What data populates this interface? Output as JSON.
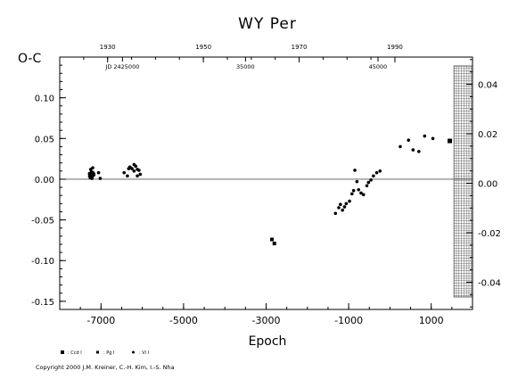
{
  "chart_data": {
    "type": "scatter",
    "title": "WY Per",
    "xlabel": "Epoch",
    "ylabel": "O-C",
    "xlim": [
      -8000,
      2000
    ],
    "ylim": [
      -0.16,
      0.15
    ],
    "y_ticks": [
      "0.10",
      "0.05",
      "0.00",
      "-0.05",
      "-0.10",
      "-0.15"
    ],
    "y_tick_values": [
      0.1,
      0.05,
      0.0,
      -0.05,
      -0.1,
      -0.15
    ],
    "x_ticks": [
      "-7000",
      "-5000",
      "-3000",
      "-1000",
      "1000"
    ],
    "x_tick_values": [
      -7000,
      -5000,
      -3000,
      -1000,
      1000
    ],
    "top_year_ticks": [
      "1930",
      "1950",
      "1970",
      "1990"
    ],
    "top_year_epochs": [
      -6840,
      -4520,
      -2200,
      120
    ],
    "jd_labels": [
      "JD 2425000",
      "35000",
      "45000"
    ],
    "jd_epochs": [
      -6480,
      -3500,
      -290
    ],
    "right_ticks": [
      "0.04",
      "0.02",
      "0.00",
      "-0.02",
      "-0.04"
    ],
    "right_tick_values": [
      0.04,
      0.02,
      0.0,
      -0.02,
      -0.04
    ],
    "right_ylim": [
      -0.051,
      0.051
    ],
    "hatched_region_start": 1550,
    "grid": false,
    "zero_line": true,
    "legend": [
      "Ccd I",
      "Pg I",
      "Vi I"
    ],
    "copyright": "Copyright 2000 J.M. Kreiner, C.-H. Kim, I.-S. Nha",
    "series": [
      {
        "name": "Ccd I",
        "marker": "square",
        "x": [
          1450
        ],
        "y": [
          0.047
        ]
      },
      {
        "name": "Pg I",
        "marker": "square",
        "x": [
          -7270,
          -7220,
          -7180,
          -7250,
          -7210,
          -2860,
          -2800
        ],
        "y": [
          0.004,
          0.003,
          0.006,
          0.002,
          0.008,
          -0.074,
          -0.079
        ]
      },
      {
        "name": "Vi I",
        "marker": "dot",
        "x": [
          -7250,
          -7200,
          -7230,
          -7280,
          -7180,
          -7220,
          -7060,
          -7020,
          -6440,
          -6360,
          -6300,
          -6250,
          -6200,
          -6160,
          -6120,
          -6080,
          -6050,
          -6330,
          -6200,
          -6120,
          -1320,
          -1240,
          -1200,
          -1150,
          -1100,
          -1060,
          -980,
          -920,
          -880,
          -850,
          -800,
          -760,
          -700,
          -640,
          -560,
          -520,
          -460,
          -400,
          -320,
          -240,
          250,
          450,
          560,
          700,
          840,
          1040
        ],
        "y": [
          0.012,
          0.014,
          0.009,
          0.007,
          0.005,
          0.001,
          0.008,
          0.001,
          0.008,
          0.004,
          0.015,
          0.013,
          0.018,
          0.016,
          0.012,
          0.011,
          0.006,
          0.013,
          0.01,
          0.004,
          -0.042,
          -0.035,
          -0.031,
          -0.038,
          -0.034,
          -0.03,
          -0.027,
          -0.018,
          -0.014,
          0.011,
          -0.003,
          -0.013,
          -0.017,
          -0.019,
          -0.008,
          -0.004,
          -0.001,
          0.004,
          0.008,
          0.01,
          0.04,
          0.048,
          0.036,
          0.034,
          0.053,
          0.05
        ]
      }
    ]
  }
}
